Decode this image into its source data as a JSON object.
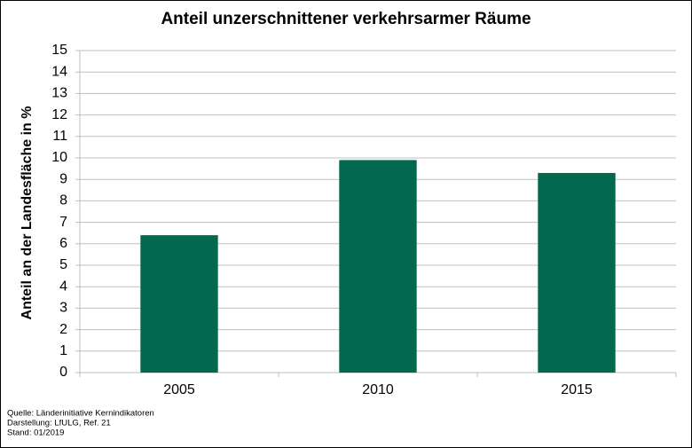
{
  "chart_data": {
    "type": "bar",
    "title": "Anteil unzerschnittener verkehrsarmer Räume",
    "y_label": "Anteil an der Landesfläche in %",
    "categories": [
      "2005",
      "2010",
      "2015"
    ],
    "values": [
      6.4,
      9.9,
      9.3
    ],
    "color": "#036850",
    "ylim": [
      0,
      15
    ],
    "yticks": [
      0,
      1,
      2,
      3,
      4,
      5,
      6,
      7,
      8,
      9,
      10,
      11,
      12,
      13,
      14,
      15
    ],
    "grid": true,
    "notes": [
      "Quelle: Länderinitiative Kernindikatoren",
      "Darstellung: LfULG, Ref. 21",
      "Stand: 01/2019"
    ]
  }
}
